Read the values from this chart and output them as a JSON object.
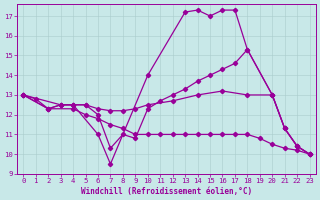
{
  "xlabel": "Windchill (Refroidissement éolien,°C)",
  "bg_color": "#c8e8e8",
  "line_color": "#990099",
  "xlim": [
    -0.5,
    23.5
  ],
  "ylim": [
    9.0,
    17.6
  ],
  "yticks": [
    9,
    10,
    11,
    12,
    13,
    14,
    15,
    16,
    17
  ],
  "xticks": [
    0,
    1,
    2,
    3,
    4,
    5,
    6,
    7,
    8,
    9,
    10,
    11,
    12,
    13,
    14,
    15,
    16,
    17,
    18,
    19,
    20,
    21,
    22,
    23
  ],
  "lines": [
    {
      "x": [
        0,
        1,
        2,
        3,
        4,
        6,
        7,
        10,
        13,
        14,
        15,
        16,
        17,
        18,
        20,
        21,
        22,
        23
      ],
      "y": [
        13,
        12.8,
        12.3,
        12.5,
        12.5,
        11.0,
        9.5,
        14.0,
        17.2,
        17.3,
        17.0,
        17.3,
        17.3,
        15.3,
        13.0,
        11.3,
        10.4,
        10.0
      ]
    },
    {
      "x": [
        0,
        3,
        4,
        5,
        6,
        7,
        8,
        9,
        10,
        11,
        12,
        13,
        14,
        15,
        16,
        17,
        18,
        20,
        21,
        22,
        23
      ],
      "y": [
        13,
        12.5,
        12.5,
        12.5,
        12.0,
        10.3,
        11.0,
        10.8,
        12.3,
        12.7,
        13.0,
        13.3,
        13.7,
        14.0,
        14.3,
        14.6,
        15.3,
        13.0,
        11.3,
        10.4,
        10.0
      ]
    },
    {
      "x": [
        0,
        2,
        3,
        4,
        5,
        6,
        7,
        8,
        9,
        10,
        12,
        14,
        16,
        18,
        20,
        21,
        22,
        23
      ],
      "y": [
        13,
        12.3,
        12.5,
        12.5,
        12.5,
        12.3,
        12.2,
        12.2,
        12.3,
        12.5,
        12.7,
        13.0,
        13.2,
        13.0,
        13.0,
        11.3,
        10.4,
        10.0
      ]
    },
    {
      "x": [
        0,
        2,
        4,
        5,
        6,
        7,
        8,
        9,
        10,
        11,
        12,
        13,
        14,
        15,
        16,
        17,
        18,
        19,
        20,
        21,
        22,
        23
      ],
      "y": [
        13,
        12.3,
        12.3,
        12.0,
        11.8,
        11.5,
        11.3,
        11.0,
        11.0,
        11.0,
        11.0,
        11.0,
        11.0,
        11.0,
        11.0,
        11.0,
        11.0,
        10.8,
        10.5,
        10.3,
        10.2,
        10.0
      ]
    }
  ]
}
